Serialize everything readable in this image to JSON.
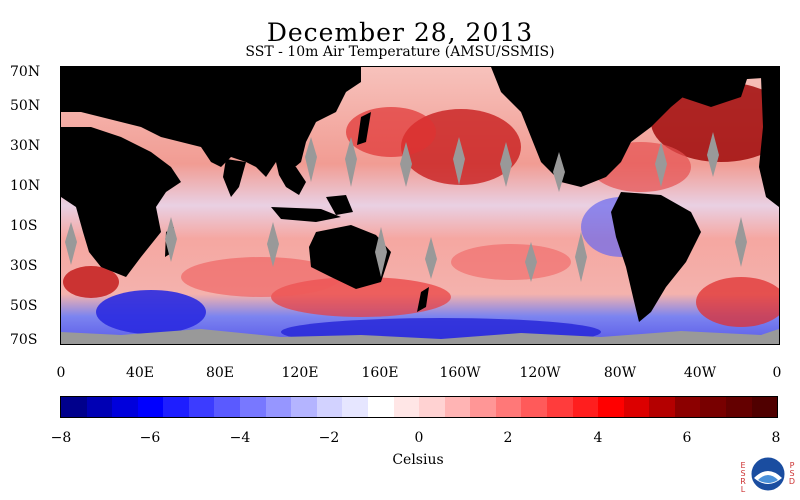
{
  "header": {
    "title": "December 28, 2013",
    "subtitle": "SST - 10m Air Temperature (AMSU/SSMIS)"
  },
  "map": {
    "lat_labels": [
      "70N",
      "50N",
      "30N",
      "10N",
      "10S",
      "30S",
      "50S",
      "70S"
    ],
    "lon_labels": [
      "0",
      "40E",
      "80E",
      "120E",
      "160E",
      "160W",
      "120W",
      "80W",
      "40W",
      "0"
    ],
    "land_color": "#000000",
    "no_data_color": "#999999"
  },
  "colorbar": {
    "tick_labels": [
      "−8",
      "−6",
      "−4",
      "−2",
      "0",
      "2",
      "4",
      "6",
      "8"
    ],
    "units_label": "Celsius",
    "colors": [
      "#00008c",
      "#0000b4",
      "#0000dc",
      "#0000ff",
      "#1e1eff",
      "#3c3cff",
      "#5a5aff",
      "#7878ff",
      "#9696ff",
      "#b4b4ff",
      "#d2d2ff",
      "#e6e6ff",
      "#ffffff",
      "#ffe6e6",
      "#ffd2d2",
      "#ffb4b4",
      "#ff9696",
      "#ff7878",
      "#ff5a5a",
      "#ff3c3c",
      "#ff1e1e",
      "#ff0000",
      "#dc0000",
      "#b40000",
      "#8c0000",
      "#780000",
      "#640000",
      "#500000"
    ]
  },
  "logo": {
    "left_text": "ESRL",
    "right_text": "PSD",
    "name": "noaa-logo"
  }
}
